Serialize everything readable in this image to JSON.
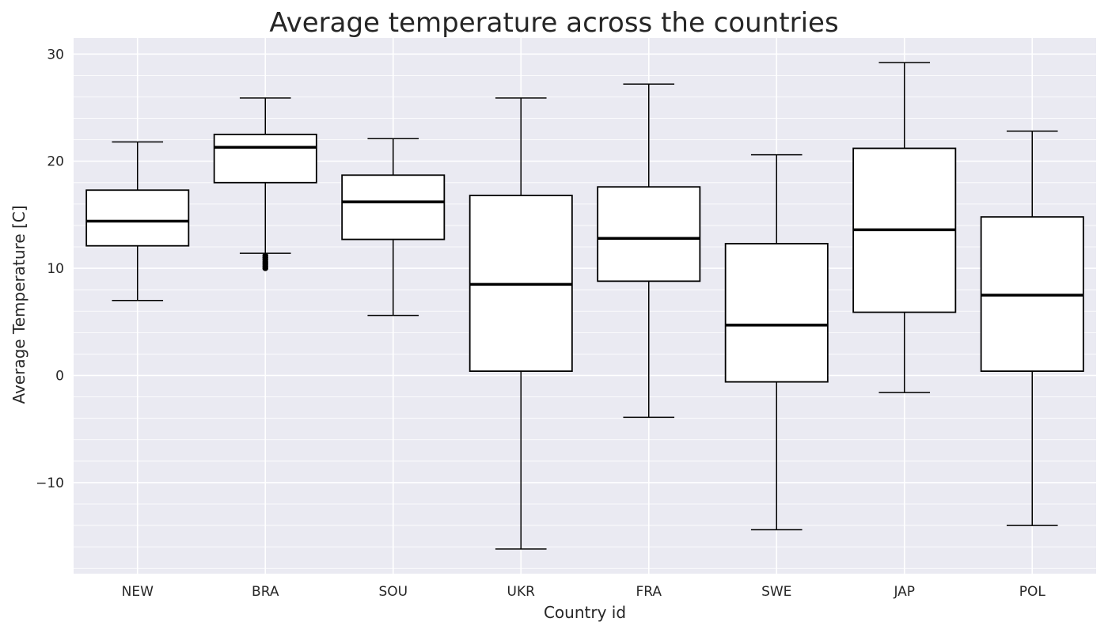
{
  "chart_data": {
    "type": "box",
    "title": "Average temperature across the countries",
    "xlabel": "Country id",
    "ylabel": "Average Temperature [C]",
    "ylim": [
      -18.5,
      31.5
    ],
    "yticks": [
      -10,
      0,
      10,
      20,
      30
    ],
    "grid": true,
    "colors": {
      "background": "#eaeaf2",
      "grid": "#ffffff",
      "box_fill": "#ffffff",
      "box_edge": "#000000",
      "median": "#000000",
      "text": "#262626"
    },
    "categories": [
      "NEW",
      "BRA",
      "SOU",
      "UKR",
      "FRA",
      "SWE",
      "JAP",
      "POL"
    ],
    "boxes": [
      {
        "label": "NEW",
        "whisker_low": 7.0,
        "q1": 12.1,
        "median": 14.4,
        "q3": 17.3,
        "whisker_high": 21.8,
        "outliers": []
      },
      {
        "label": "BRA",
        "whisker_low": 11.4,
        "q1": 18.0,
        "median": 21.3,
        "q3": 22.5,
        "whisker_high": 25.9,
        "outliers": [
          11.2,
          11.0,
          10.8,
          10.6,
          10.4,
          10.2,
          10.0
        ]
      },
      {
        "label": "SOU",
        "whisker_low": 5.6,
        "q1": 12.7,
        "median": 16.2,
        "q3": 18.7,
        "whisker_high": 22.1,
        "outliers": []
      },
      {
        "label": "UKR",
        "whisker_low": -16.2,
        "q1": 0.4,
        "median": 8.5,
        "q3": 16.8,
        "whisker_high": 25.9,
        "outliers": []
      },
      {
        "label": "FRA",
        "whisker_low": -3.9,
        "q1": 8.8,
        "median": 12.8,
        "q3": 17.6,
        "whisker_high": 27.2,
        "outliers": []
      },
      {
        "label": "SWE",
        "whisker_low": -14.4,
        "q1": -0.6,
        "median": 4.7,
        "q3": 12.3,
        "whisker_high": 20.6,
        "outliers": []
      },
      {
        "label": "JAP",
        "whisker_low": -1.6,
        "q1": 5.9,
        "median": 13.6,
        "q3": 21.2,
        "whisker_high": 29.2,
        "outliers": []
      },
      {
        "label": "POL",
        "whisker_low": -14.0,
        "q1": 0.4,
        "median": 7.5,
        "q3": 14.8,
        "whisker_high": 22.8,
        "outliers": []
      }
    ]
  }
}
